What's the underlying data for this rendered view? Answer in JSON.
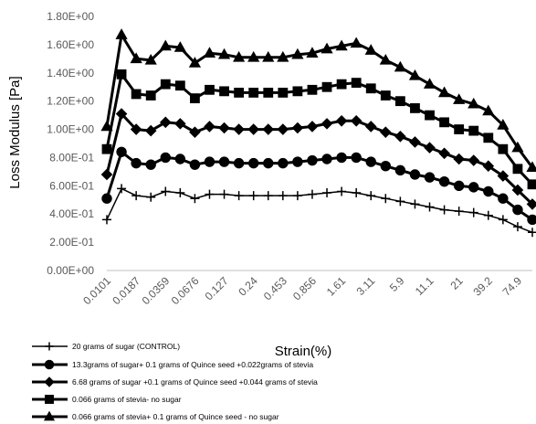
{
  "chart_data": {
    "type": "line",
    "xlabel": "Strain(%)",
    "ylabel": "Loss Modulus [Pa]",
    "ylim": [
      0,
      1.8
    ],
    "yticks": [
      "0.00E+00",
      "2.00E-01",
      "4.00E-01",
      "6.00E-01",
      "8.00E-01",
      "1.00E+00",
      "1.20E+00",
      "1.40E+00",
      "1.60E+00",
      "1.80E+00"
    ],
    "x_scale": "log",
    "xtick_labels": [
      "0.0101",
      "0.0187",
      "0.0359",
      "0.0676",
      "0.127",
      "0.24",
      "0.453",
      "0.856",
      "1.61",
      "3.11",
      "5.9",
      "11.1",
      "21",
      "39.2",
      "74.9"
    ],
    "x": [
      0.0101,
      0.0138,
      0.0187,
      0.0257,
      0.0359,
      0.0493,
      0.0676,
      0.0926,
      0.127,
      0.174,
      0.24,
      0.33,
      0.453,
      0.622,
      0.856,
      1.17,
      1.61,
      2.22,
      3.11,
      4.29,
      5.9,
      8.12,
      11.1,
      15.3,
      21,
      28.9,
      39.2,
      54.1,
      74.9,
      103
    ],
    "grid": false,
    "legend_position": "bottom",
    "series": [
      {
        "name": "20 grams of sugar (CONTROL)",
        "marker": "plus",
        "color": "#000000",
        "values": [
          0.36,
          0.58,
          0.53,
          0.52,
          0.56,
          0.55,
          0.51,
          0.54,
          0.54,
          0.53,
          0.53,
          0.53,
          0.53,
          0.53,
          0.54,
          0.55,
          0.56,
          0.55,
          0.53,
          0.51,
          0.49,
          0.47,
          0.45,
          0.43,
          0.42,
          0.41,
          0.39,
          0.36,
          0.31,
          0.27
        ]
      },
      {
        "name": "13.3grams of sugar+  0.1 grams of Quince seed +0.022grams of stevia",
        "marker": "circle",
        "color": "#000000",
        "values": [
          0.51,
          0.84,
          0.76,
          0.75,
          0.8,
          0.79,
          0.75,
          0.77,
          0.77,
          0.76,
          0.76,
          0.76,
          0.76,
          0.77,
          0.78,
          0.79,
          0.8,
          0.8,
          0.77,
          0.74,
          0.71,
          0.68,
          0.66,
          0.63,
          0.6,
          0.59,
          0.56,
          0.51,
          0.43,
          0.36
        ]
      },
      {
        "name": "6.68 grams of sugar +0.1 grams of Quince seed  +0.044 grams of stevia",
        "marker": "diamond",
        "color": "#000000",
        "values": [
          0.68,
          1.11,
          1.0,
          0.99,
          1.05,
          1.04,
          0.98,
          1.02,
          1.01,
          1.0,
          1.0,
          1.0,
          1.0,
          1.01,
          1.02,
          1.04,
          1.06,
          1.06,
          1.02,
          0.98,
          0.95,
          0.91,
          0.87,
          0.83,
          0.79,
          0.78,
          0.74,
          0.67,
          0.57,
          0.47
        ]
      },
      {
        "name": "0.066 grams of stevia-  no sugar",
        "marker": "square",
        "color": "#000000",
        "values": [
          0.86,
          1.39,
          1.25,
          1.24,
          1.32,
          1.31,
          1.22,
          1.28,
          1.27,
          1.26,
          1.26,
          1.26,
          1.26,
          1.27,
          1.28,
          1.3,
          1.32,
          1.33,
          1.29,
          1.24,
          1.2,
          1.15,
          1.1,
          1.05,
          1.0,
          0.99,
          0.94,
          0.86,
          0.72,
          0.61
        ]
      },
      {
        "name": "0.066 grams of stevia+ 0.1 grams of Quince seed - no sugar",
        "marker": "triangle",
        "color": "#000000",
        "values": [
          1.02,
          1.67,
          1.5,
          1.49,
          1.59,
          1.58,
          1.47,
          1.54,
          1.53,
          1.51,
          1.51,
          1.51,
          1.51,
          1.53,
          1.54,
          1.57,
          1.59,
          1.61,
          1.56,
          1.49,
          1.44,
          1.38,
          1.32,
          1.26,
          1.21,
          1.18,
          1.13,
          1.03,
          0.87,
          0.73
        ]
      }
    ]
  }
}
